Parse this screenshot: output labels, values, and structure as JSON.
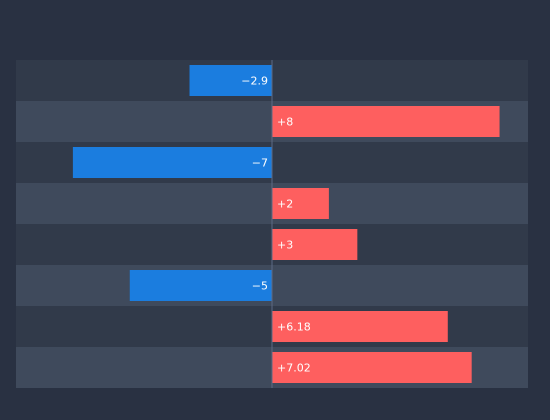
{
  "chart_data": {
    "type": "bar",
    "orientation": "horizontal",
    "diverging": true,
    "categories": [
      "",
      "",
      "",
      "",
      "",
      "",
      "",
      ""
    ],
    "values": [
      -2.9,
      8,
      -7,
      2,
      3,
      -5,
      6.18,
      7.02
    ],
    "labels": [
      "−2.9",
      "+8",
      "−7",
      "+2",
      "+3",
      "−5",
      "+6.18",
      "+7.02"
    ],
    "xlim": [
      -9,
      9
    ],
    "grid": false,
    "title": "",
    "xlabel": "",
    "ylabel": ""
  },
  "colors": {
    "background": "#293142",
    "band_dark": "#313a4a",
    "band_light": "#3f4a5c",
    "axis": "#5c6b85",
    "positive": "#fe5f5f",
    "negative": "#1b7ddf",
    "label": "#ffffff"
  }
}
